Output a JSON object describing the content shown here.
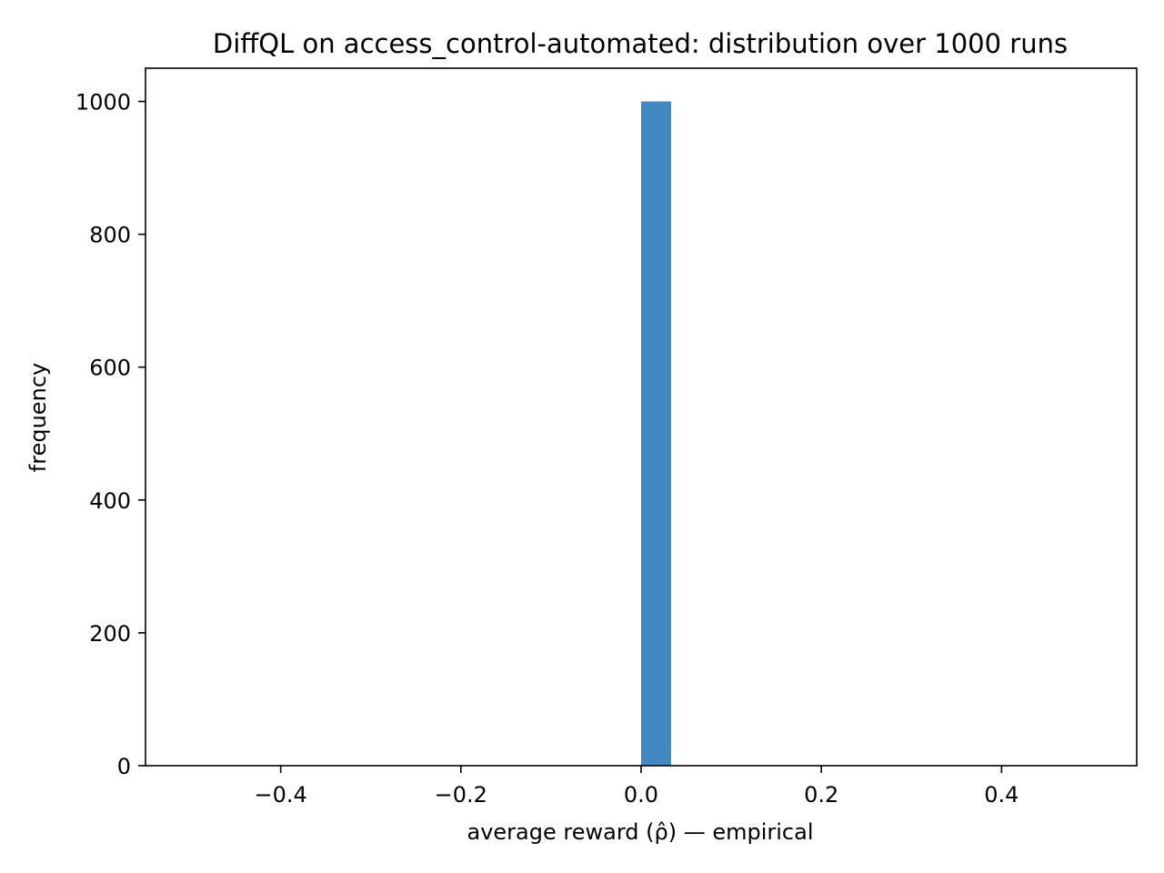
{
  "chart_data": {
    "type": "bar",
    "title": "DiffQL on access_control-automated: distribution over 1000 runs",
    "xlabel": "average reward (ρ̂) — empirical",
    "ylabel": "frequency",
    "xlim": [
      -0.55,
      0.55
    ],
    "ylim": [
      0,
      1050
    ],
    "x_ticks": [
      {
        "value": -0.4,
        "label": "−0.4"
      },
      {
        "value": -0.2,
        "label": "−0.2"
      },
      {
        "value": 0.0,
        "label": "0.0"
      },
      {
        "value": 0.2,
        "label": "0.2"
      },
      {
        "value": 0.4,
        "label": "0.4"
      }
    ],
    "y_ticks": [
      {
        "value": 0,
        "label": "0"
      },
      {
        "value": 200,
        "label": "200"
      },
      {
        "value": 400,
        "label": "400"
      },
      {
        "value": 600,
        "label": "600"
      },
      {
        "value": 800,
        "label": "800"
      },
      {
        "value": 1000,
        "label": "1000"
      }
    ],
    "bins": [
      {
        "x0": 0.0,
        "x1": 0.0333,
        "count": 1000
      }
    ],
    "bar_color": "#4189c0",
    "grid": false,
    "legend": "none"
  }
}
